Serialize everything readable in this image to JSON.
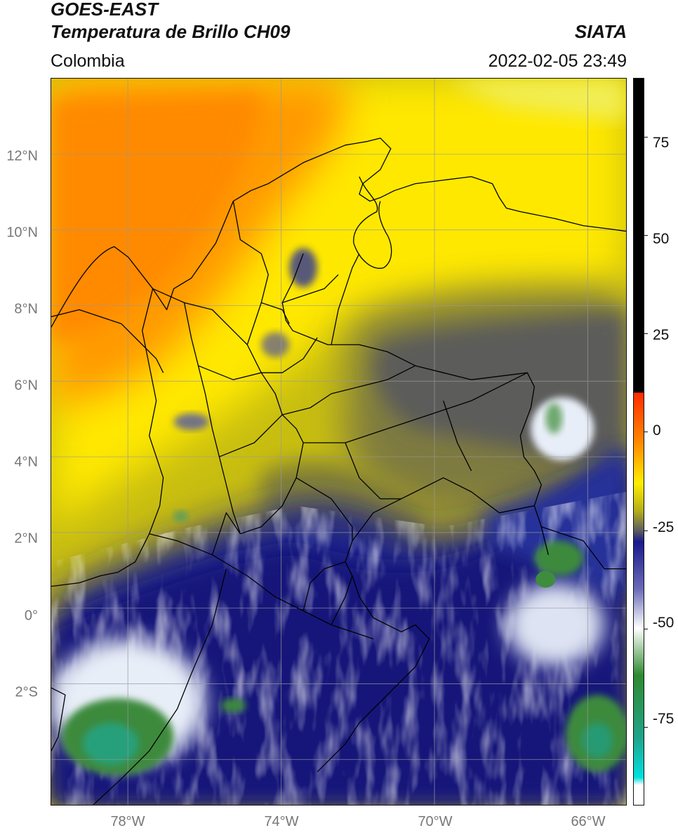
{
  "header": {
    "title_line1": "GOES-EAST",
    "title_line2": "Temperatura de Brillo CH09",
    "source": "SIATA",
    "region": "Colombia",
    "datetime": "2022-02-05 23:49"
  },
  "map": {
    "lat_labels": [
      "12°N",
      "10°N",
      "8°N",
      "6°N",
      "4°N",
      "2°N",
      "0°",
      "2°S"
    ],
    "lon_labels": [
      "78°W",
      "74°W",
      "70°W",
      "66°W"
    ],
    "lon_range": [
      -80.0,
      -65.0
    ],
    "lat_range": [
      -5.2,
      14.0
    ],
    "grid": true
  },
  "colorbar": {
    "tick_labels": [
      "75",
      "50",
      "25",
      "0",
      "-25",
      "-50",
      "-75"
    ],
    "range": [
      -95,
      90
    ],
    "colors": {
      "black": "#000000",
      "red": "#ff2a00",
      "orange": "#ff8c00",
      "yellow": "#ffee00",
      "olive": "#b5b01a",
      "gray": "#5f5f5f",
      "navy": "#1a1a8c",
      "white": "#ffffff",
      "green": "#2f8a2f",
      "teal": "#1fa58a",
      "cyan": "#00e0e0"
    }
  }
}
